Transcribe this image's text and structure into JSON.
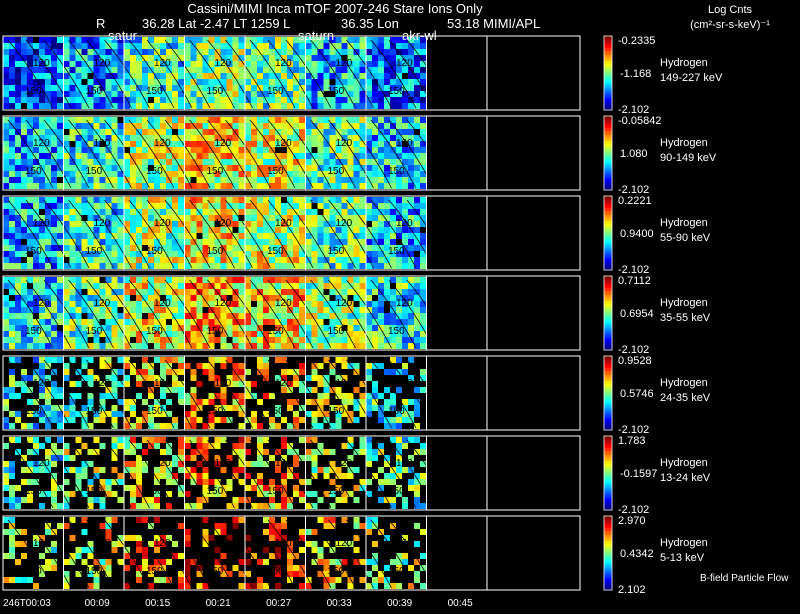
{
  "header": {
    "title": "Cassini/MIMI Inca mTOF  2007-246   Stare    Ions Only",
    "r_label": "R",
    "lat_label": "36.28 Lat -2.47 LT 1259 L",
    "lon_label": "36.35 Lon",
    "mimi_label": "53.18  MIMI/APL",
    "log_cnts": "Log Cnts",
    "units": "(cm²-sr-s-keV)⁻¹"
  },
  "overlay_labels": {
    "saturn_1": "satur",
    "saturn_2": "saturn",
    "akr_wl": "akr-wl"
  },
  "footer": {
    "bfield_label": "B-field Particle Flow"
  },
  "chart_data": {
    "type": "heatmap",
    "title": "Cassini/MIMI Inca mTOF  2007-246   Stare    Ions Only",
    "columns": [
      "246T00:03",
      "00:09",
      "00:15",
      "00:21",
      "00:27",
      "00:33",
      "00:39",
      "00:45"
    ],
    "contour_levels": [
      "120",
      "150"
    ],
    "panels": [
      {
        "species": "Hydrogen",
        "energy": "149-227 keV",
        "cbar": [
          "-0.2335",
          "-1.168",
          "-2.102"
        ],
        "fill": 0.98,
        "temp": 0.25,
        "active_cols": 7
      },
      {
        "species": "Hydrogen",
        "energy": "90-149 keV",
        "cbar": [
          "-0.05842",
          "1.080",
          "-2.102"
        ],
        "fill": 0.98,
        "temp": 0.45,
        "active_cols": 7
      },
      {
        "species": "Hydrogen",
        "energy": "55-90 keV",
        "cbar": [
          "0.2221",
          "0.9400",
          "-2.102"
        ],
        "fill": 0.98,
        "temp": 0.45,
        "active_cols": 7
      },
      {
        "species": "Hydrogen",
        "energy": "35-55 keV",
        "cbar": [
          "0.7112",
          "0.6954",
          "-2.102"
        ],
        "fill": 0.95,
        "temp": 0.55,
        "active_cols": 7
      },
      {
        "species": "Hydrogen",
        "energy": "24-35 keV",
        "cbar": [
          "0.9528",
          "0.5746",
          "-2.102"
        ],
        "fill": 0.55,
        "temp": 0.6,
        "active_cols": 7
      },
      {
        "species": "Hydrogen",
        "energy": "13-24 keV",
        "cbar": [
          "1.783",
          "-0.1597",
          "-2.102"
        ],
        "fill": 0.5,
        "temp": 0.65,
        "active_cols": 7
      },
      {
        "species": "Hydrogen",
        "energy": "5-13 keV",
        "cbar": [
          "2.970",
          "0.4342",
          "2.102"
        ],
        "fill": 0.35,
        "temp": 0.8,
        "active_cols": 7
      }
    ]
  }
}
